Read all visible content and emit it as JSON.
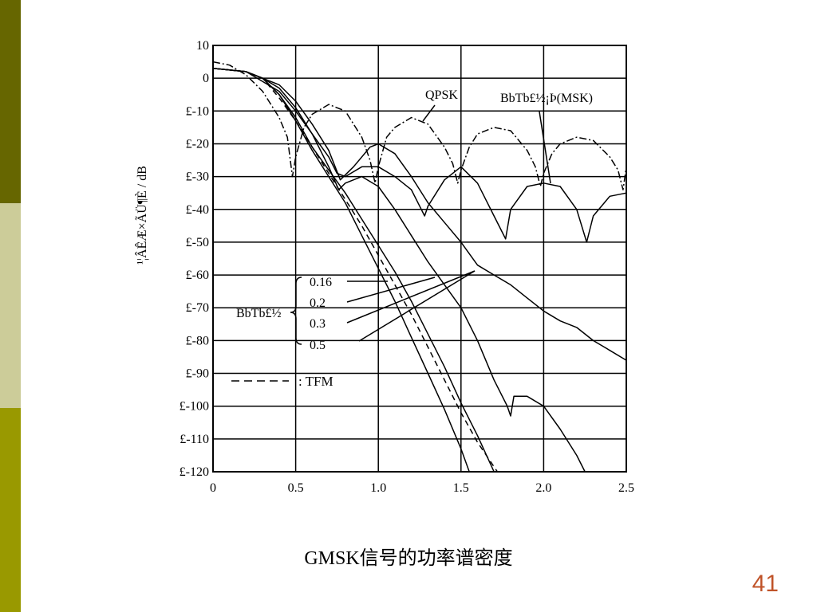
{
  "slide": {
    "caption": "GMSK信号的功率谱密度",
    "page_number": "41",
    "bar_colors": [
      "#666600",
      "#cccc99",
      "#999900"
    ]
  },
  "chart_data": {
    "type": "line",
    "title": "",
    "xlabel": "",
    "ylabel": "¹¦ÂÊÆ×ÃÜ¶È / dB",
    "xlim": [
      0,
      2.5
    ],
    "ylim": [
      -120,
      10
    ],
    "x_ticks": [
      "0",
      "0.5",
      "1.0",
      "1.5",
      "2.0",
      "2.5"
    ],
    "y_ticks": [
      "10",
      "0",
      "£-10",
      "£-20",
      "£-30",
      "£-40",
      "£-50",
      "£-60",
      "£-70",
      "£-80",
      "£-90",
      "£-100",
      "£-110",
      "£-120"
    ],
    "grid": true,
    "annotations": {
      "qpsk": "QPSK",
      "msk": "BbTb£½¡Þ(MSK)",
      "bt_label": "BbTb£½",
      "tfm": ": TFM"
    },
    "series": [
      {
        "name": "0.16",
        "style": "solid",
        "x": [
          0,
          0.2,
          0.3,
          0.4,
          0.5,
          0.6,
          0.7,
          0.8,
          0.9,
          1.0,
          1.1,
          1.2,
          1.3,
          1.4,
          1.5,
          1.55
        ],
        "y": [
          3,
          2,
          0,
          -5,
          -13,
          -22,
          -30,
          -38,
          -48,
          -58,
          -68,
          -79,
          -90,
          -101,
          -113,
          -120
        ]
      },
      {
        "name": "0.2",
        "style": "solid",
        "x": [
          0,
          0.2,
          0.3,
          0.4,
          0.5,
          0.6,
          0.7,
          0.8,
          0.9,
          1.0,
          1.1,
          1.2,
          1.3,
          1.4,
          1.5,
          1.6,
          1.7
        ],
        "y": [
          3,
          2,
          0,
          -5,
          -12,
          -21,
          -28,
          -35,
          -43,
          -51,
          -59,
          -68,
          -78,
          -88,
          -99,
          -109,
          -120
        ]
      },
      {
        "name": "0.3",
        "style": "solid",
        "x": [
          0,
          0.2,
          0.3,
          0.4,
          0.5,
          0.6,
          0.7,
          0.76,
          0.8,
          0.9,
          1.0,
          1.1,
          1.2,
          1.3,
          1.4,
          1.5,
          1.6,
          1.7,
          1.78,
          1.8,
          1.82,
          1.9,
          2.0,
          2.1,
          2.2,
          2.25
        ],
        "y": [
          3,
          2,
          0,
          -3,
          -9,
          -17,
          -27,
          -34,
          -32,
          -30,
          -33,
          -40,
          -48,
          -56,
          -63,
          -70,
          -80,
          -92,
          -100,
          -103,
          -97,
          -97,
          -100,
          -107,
          -115,
          -120
        ]
      },
      {
        "name": "0.5",
        "style": "solid",
        "x": [
          0,
          0.2,
          0.3,
          0.4,
          0.5,
          0.6,
          0.7,
          0.77,
          0.85,
          0.95,
          1.0,
          1.1,
          1.2,
          1.3,
          1.4,
          1.5,
          1.6,
          1.7,
          1.8,
          1.9,
          2.0,
          2.1,
          2.2,
          2.3,
          2.4,
          2.5
        ],
        "y": [
          3,
          2,
          0,
          -2,
          -7,
          -14,
          -22,
          -31,
          -27,
          -21,
          -20,
          -23,
          -30,
          -38,
          -44,
          -50,
          -57,
          -60,
          -63,
          -67,
          -71,
          -74,
          -76,
          -80,
          -83,
          -86
        ]
      },
      {
        "name": "MSK",
        "style": "solid",
        "x": [
          0,
          0.2,
          0.4,
          0.5,
          0.6,
          0.7,
          0.75,
          0.8,
          0.9,
          1.0,
          1.1,
          1.2,
          1.25,
          1.28,
          1.3,
          1.4,
          1.5,
          1.6,
          1.7,
          1.75,
          1.77,
          1.8,
          1.9,
          2.0,
          2.1,
          2.2,
          2.26,
          2.3,
          2.4,
          2.5
        ],
        "y": [
          3,
          2,
          -4,
          -10,
          -17,
          -24,
          -29,
          -30,
          -27,
          -27,
          -30,
          -34,
          -39,
          -42,
          -39,
          -31,
          -27,
          -32,
          -42,
          -47,
          -49,
          -40,
          -33,
          -32,
          -33,
          -40,
          -50,
          -42,
          -36,
          -35
        ]
      },
      {
        "name": "QPSK",
        "style": "dashdot",
        "x": [
          0,
          0.1,
          0.2,
          0.3,
          0.4,
          0.45,
          0.48,
          0.5,
          0.55,
          0.6,
          0.7,
          0.8,
          0.9,
          0.95,
          0.98,
          1.0,
          1.05,
          1.1,
          1.2,
          1.3,
          1.4,
          1.45,
          1.48,
          1.5,
          1.55,
          1.6,
          1.7,
          1.8,
          1.9,
          1.95,
          1.98,
          2.0,
          2.05,
          2.1,
          2.2,
          2.3,
          2.4,
          2.45,
          2.48,
          2.5
        ],
        "y": [
          5,
          4,
          1,
          -4,
          -12,
          -18,
          -30,
          -24,
          -15,
          -11,
          -8,
          -10,
          -18,
          -25,
          -32,
          -27,
          -18,
          -15,
          -12,
          -14,
          -21,
          -26,
          -32,
          -28,
          -21,
          -17,
          -15,
          -16,
          -22,
          -27,
          -33,
          -29,
          -23,
          -20,
          -18,
          -19,
          -24,
          -28,
          -34,
          -27
        ]
      },
      {
        "name": "TFM",
        "style": "dashed",
        "x": [
          0,
          0.2,
          0.3,
          0.4,
          0.5,
          0.6,
          0.7,
          0.8,
          0.9,
          1.0,
          1.1,
          1.2,
          1.3,
          1.4,
          1.5,
          1.6,
          1.72
        ],
        "y": [
          3,
          2,
          0,
          -6,
          -13,
          -21,
          -29,
          -37,
          -45,
          -54,
          -63,
          -72,
          -82,
          -92,
          -102,
          -111,
          -120
        ]
      }
    ]
  }
}
